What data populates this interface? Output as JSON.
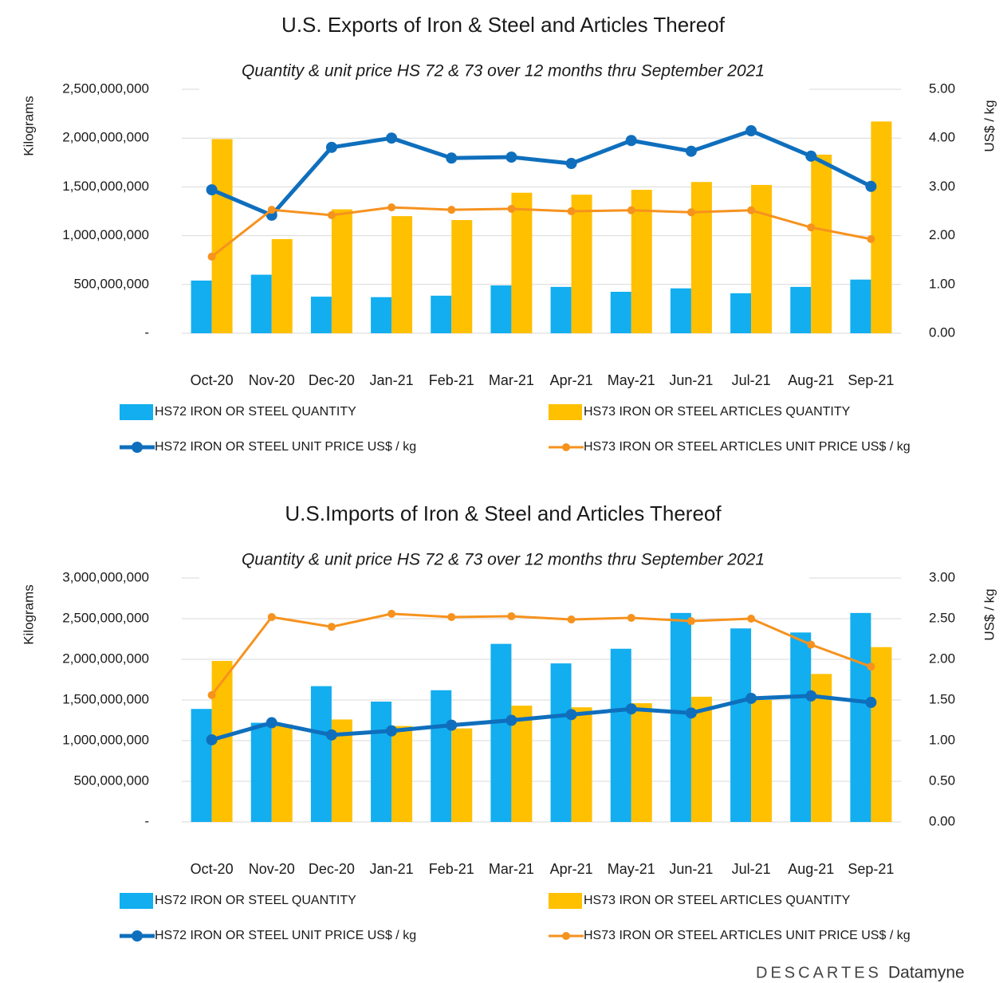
{
  "chart_data": [
    {
      "type": "bar",
      "title": "U.S. Exports of Iron & Steel and Articles Thereof",
      "subtitle": "Quantity & unit price HS 72 & 73 over 12 months thru September 2021",
      "y_label": "Kilograms",
      "y2_label": "US$ / kg",
      "categories": [
        "Oct-20",
        "Nov-20",
        "Dec-20",
        "Jan-21",
        "Feb-21",
        "Mar-21",
        "Apr-21",
        "May-21",
        "Jun-21",
        "Jul-21",
        "Aug-21",
        "Sep-21"
      ],
      "ylim": [
        0,
        2500000000
      ],
      "yticks": [
        {
          "value": 0,
          "label": "-"
        },
        {
          "value": 500000000,
          "label": "500,000,000"
        },
        {
          "value": 1000000000,
          "label": "1,000,000,000"
        },
        {
          "value": 1500000000,
          "label": "1,500,000,000"
        },
        {
          "value": 2000000000,
          "label": "2,000,000,000"
        },
        {
          "value": 2500000000,
          "label": "2,500,000,000"
        }
      ],
      "y2lim": [
        0,
        5
      ],
      "y2ticks": [
        {
          "value": 0,
          "label": "0.00"
        },
        {
          "value": 1,
          "label": "1.00"
        },
        {
          "value": 2,
          "label": "2.00"
        },
        {
          "value": 3,
          "label": "3.00"
        },
        {
          "value": 4,
          "label": "4.00"
        },
        {
          "value": 5,
          "label": "5.00"
        }
      ],
      "grid": true,
      "series": [
        {
          "name": "HS72 IRON OR STEEL QUANTITY",
          "type": "bar",
          "color": "#12aef0",
          "values": [
            540000000,
            600000000,
            375000000,
            370000000,
            385000000,
            490000000,
            475000000,
            425000000,
            460000000,
            410000000,
            475000000,
            550000000
          ]
        },
        {
          "name": "HS73 IRON OR STEEL ARTICLES QUANTITY",
          "type": "bar",
          "color": "#ffc000",
          "values": [
            1990000000,
            965000000,
            1270000000,
            1200000000,
            1160000000,
            1440000000,
            1420000000,
            1470000000,
            1550000000,
            1520000000,
            1830000000,
            2170000000
          ]
        },
        {
          "name": "HS72 IRON OR STEEL UNIT PRICE US$ / kg",
          "type": "line",
          "axis": "y2",
          "color": "#0f6fbd",
          "values": [
            2.94,
            2.42,
            3.81,
            4.0,
            3.59,
            3.61,
            3.48,
            3.95,
            3.73,
            4.15,
            3.63,
            3.01
          ]
        },
        {
          "name": "HS73 IRON OR STEEL ARTICLES UNIT PRICE US$ / kg",
          "type": "line",
          "axis": "y2",
          "color": "#f6921e",
          "values": [
            1.57,
            2.53,
            2.42,
            2.58,
            2.53,
            2.55,
            2.5,
            2.52,
            2.48,
            2.52,
            2.17,
            1.93
          ]
        }
      ]
    },
    {
      "type": "bar",
      "title": "U.S.Imports of Iron & Steel and Articles Thereof",
      "subtitle": "Quantity & unit price HS 72 & 73 over 12 months thru September 2021",
      "y_label": "Kilograms",
      "y2_label": "US$ / kg",
      "categories": [
        "Oct-20",
        "Nov-20",
        "Dec-20",
        "Jan-21",
        "Feb-21",
        "Mar-21",
        "Apr-21",
        "May-21",
        "Jun-21",
        "Jul-21",
        "Aug-21",
        "Sep-21"
      ],
      "ylim": [
        0,
        3000000000
      ],
      "yticks": [
        {
          "value": 0,
          "label": "-"
        },
        {
          "value": 500000000,
          "label": "500,000,000"
        },
        {
          "value": 1000000000,
          "label": "1,000,000,000"
        },
        {
          "value": 1500000000,
          "label": "1,500,000,000"
        },
        {
          "value": 2000000000,
          "label": "2,000,000,000"
        },
        {
          "value": 2500000000,
          "label": "2,500,000,000"
        },
        {
          "value": 3000000000,
          "label": "3,000,000,000"
        }
      ],
      "y2lim": [
        0,
        3
      ],
      "y2ticks": [
        {
          "value": 0,
          "label": "0.00"
        },
        {
          "value": 0.5,
          "label": "0.50"
        },
        {
          "value": 1,
          "label": "1.00"
        },
        {
          "value": 1.5,
          "label": "1.50"
        },
        {
          "value": 2,
          "label": "2.00"
        },
        {
          "value": 2.5,
          "label": "2.50"
        },
        {
          "value": 3,
          "label": "3.00"
        }
      ],
      "grid": true,
      "series": [
        {
          "name": "HS72 IRON OR STEEL QUANTITY",
          "type": "bar",
          "color": "#12aef0",
          "values": [
            1390000000,
            1220000000,
            1670000000,
            1480000000,
            1620000000,
            2190000000,
            1950000000,
            2130000000,
            2570000000,
            2380000000,
            2330000000,
            2570000000
          ]
        },
        {
          "name": "HS73 IRON OR STEEL ARTICLES QUANTITY",
          "type": "bar",
          "color": "#ffc000",
          "values": [
            1980000000,
            1200000000,
            1260000000,
            1180000000,
            1150000000,
            1430000000,
            1410000000,
            1460000000,
            1540000000,
            1500000000,
            1820000000,
            2150000000
          ]
        },
        {
          "name": "HS72 IRON OR STEEL UNIT PRICE US$ / kg",
          "type": "line",
          "axis": "y2",
          "color": "#0f6fbd",
          "values": [
            1.01,
            1.22,
            1.07,
            1.12,
            1.19,
            1.25,
            1.32,
            1.39,
            1.34,
            1.52,
            1.55,
            1.47
          ]
        },
        {
          "name": "HS73 IRON OR STEEL ARTICLES UNIT PRICE US$ / kg",
          "type": "line",
          "axis": "y2",
          "color": "#f6921e",
          "values": [
            1.56,
            2.52,
            2.4,
            2.56,
            2.52,
            2.53,
            2.49,
            2.51,
            2.47,
            2.5,
            2.18,
            1.91
          ]
        }
      ]
    }
  ],
  "footer": {
    "brand": "DESCARTES",
    "product": "Datamyne"
  }
}
